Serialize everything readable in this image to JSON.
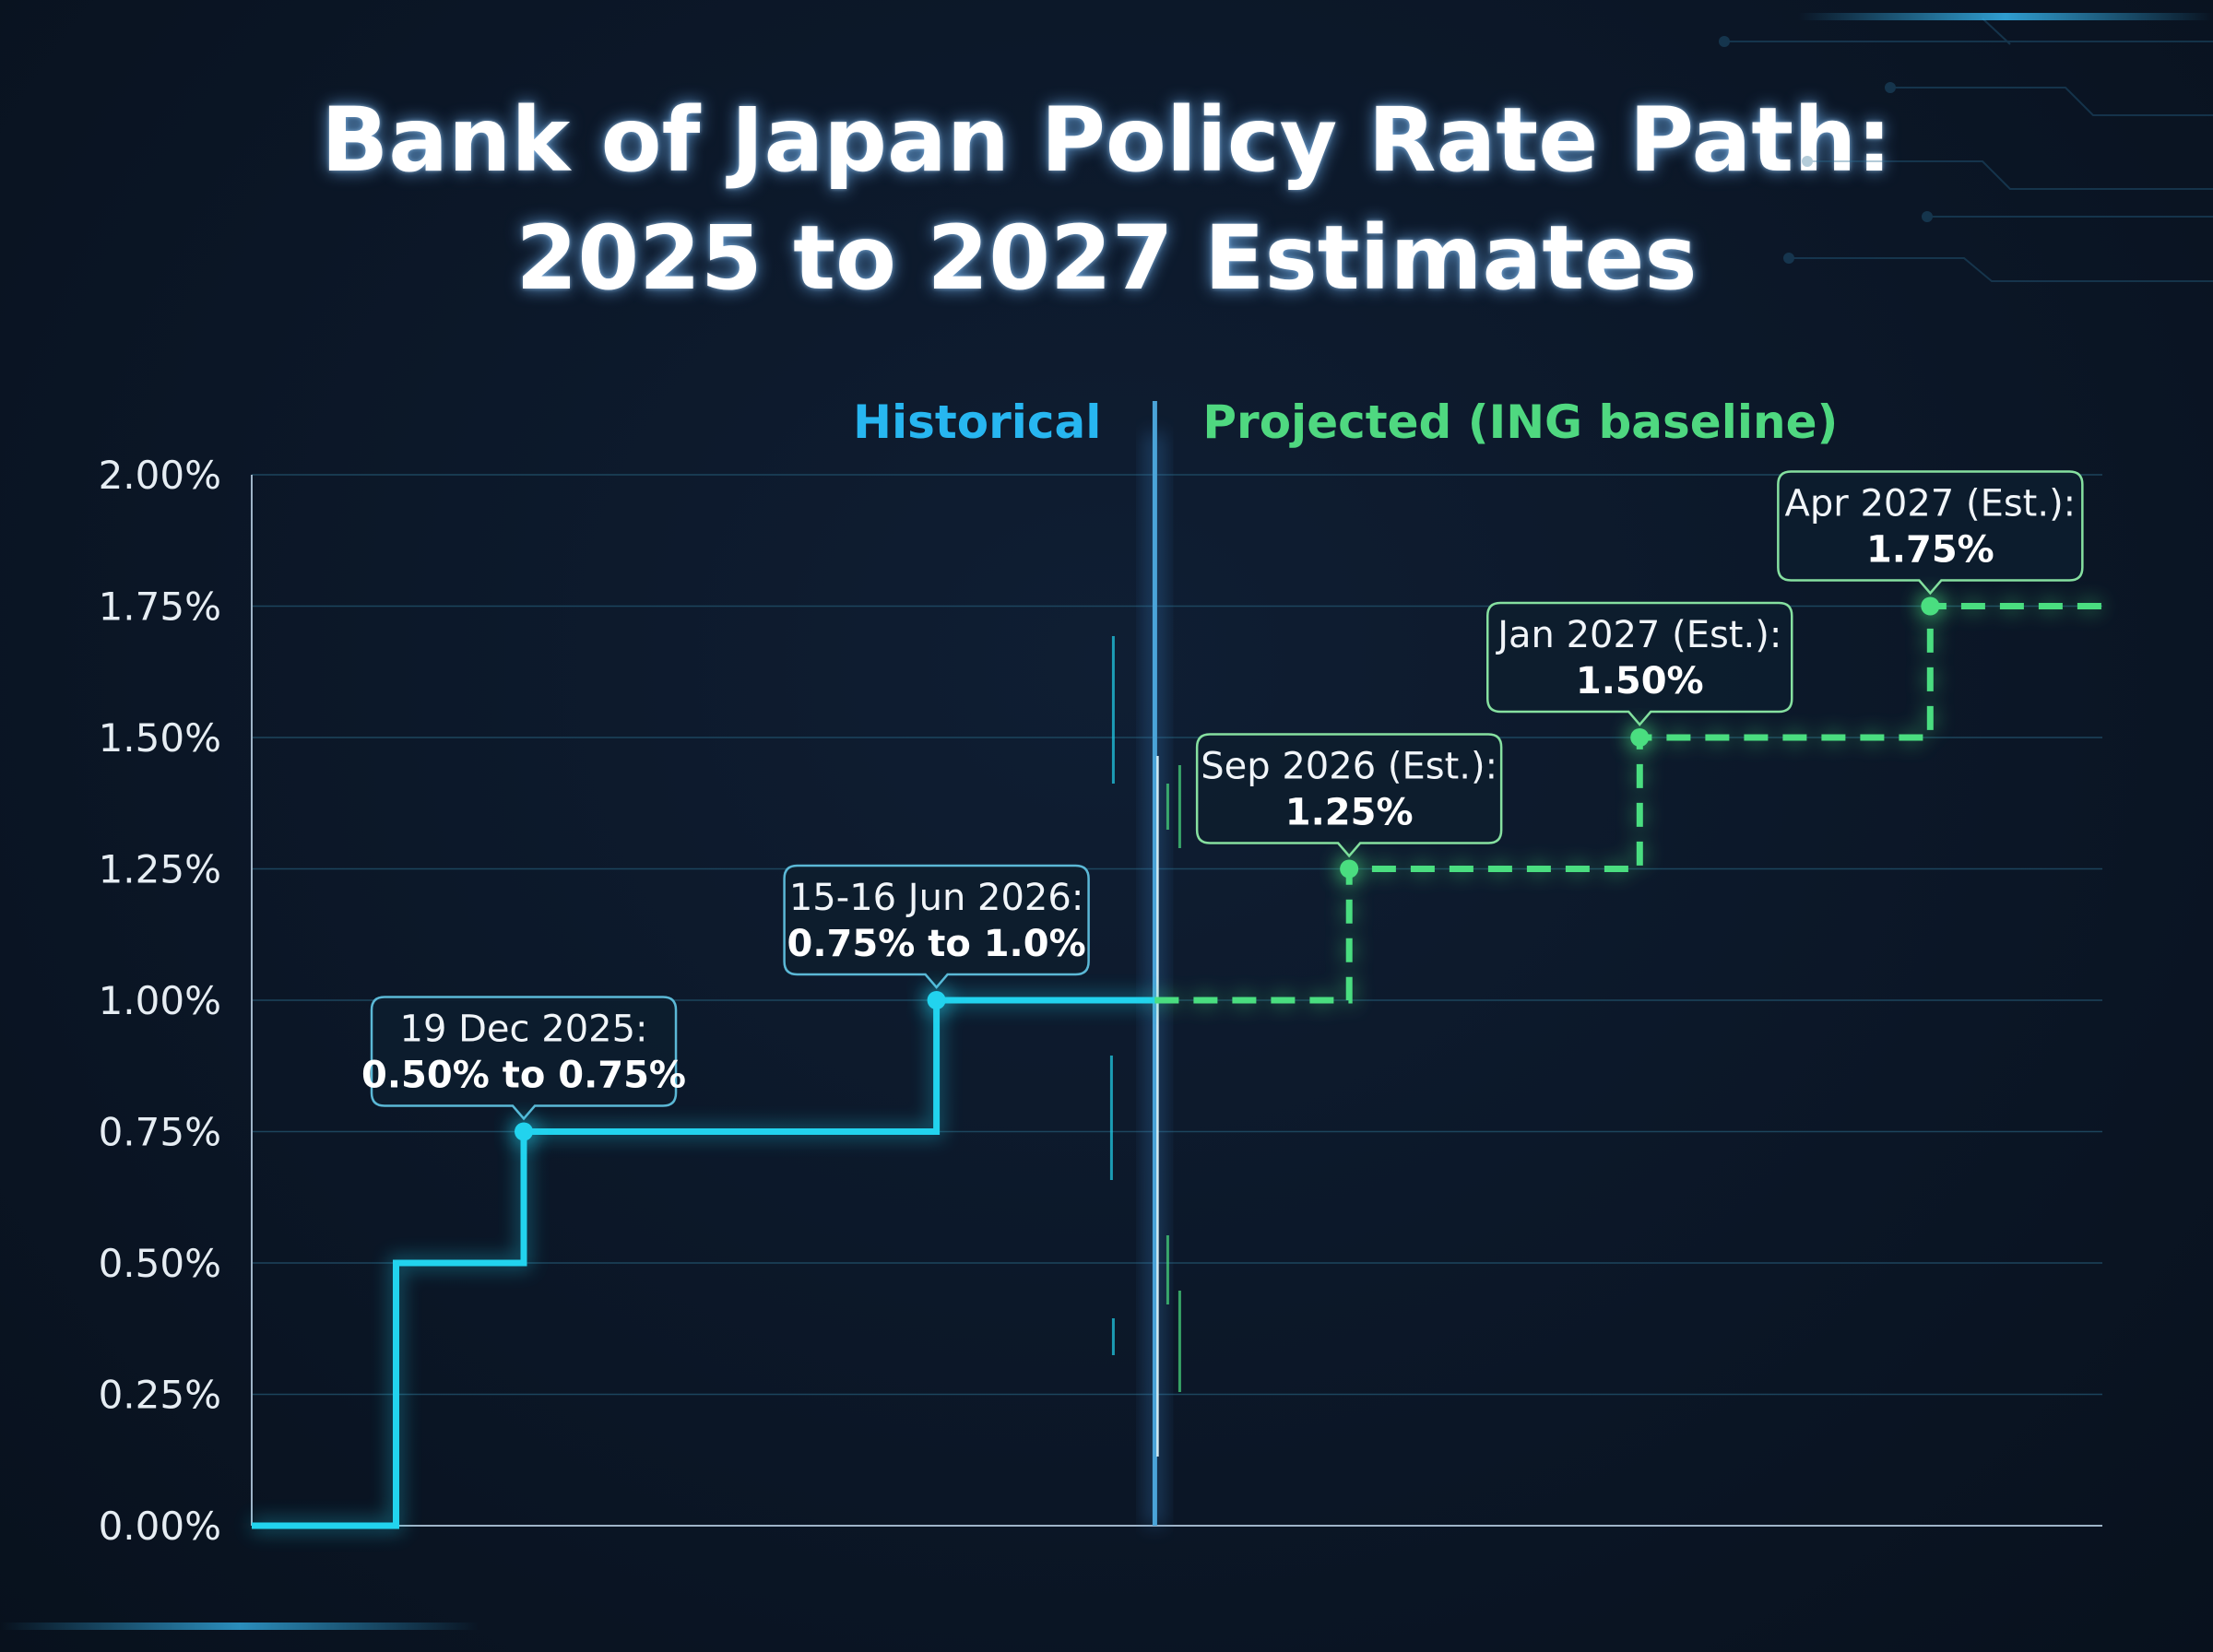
{
  "title": {
    "line1": "Bank of Japan Policy Rate Path:",
    "line2": "2025 to 2027 Estimates"
  },
  "colors": {
    "historical": "#22d3ee",
    "historical_label": "#27b6f0",
    "projected": "#4ade80",
    "projected_label": "#4fd880",
    "background": "#0b1626",
    "grid": "#1e4a63",
    "axis_text": "#e6edf3"
  },
  "chart_data": {
    "type": "line",
    "title": "Bank of Japan Policy Rate Path: 2025 to 2027 Estimates",
    "xlabel": "",
    "ylabel": "",
    "ylim": [
      0,
      2
    ],
    "y_ticks": [
      "0.00%",
      "0.25%",
      "0.50%",
      "0.75%",
      "1.00%",
      "1.25%",
      "1.50%",
      "1.75%",
      "2.00%"
    ],
    "grid": true,
    "step": true,
    "divider_at": 0.488,
    "x_range": [
      0,
      1.12
    ],
    "series": [
      {
        "name": "Historical",
        "style": "solid",
        "points": [
          {
            "x": 0.0,
            "y": 0.0
          },
          {
            "x": 0.078,
            "y": 0.0
          },
          {
            "x": 0.078,
            "y": 0.5
          },
          {
            "x": 0.147,
            "y": 0.5
          },
          {
            "x": 0.147,
            "y": 0.75,
            "marker": true
          },
          {
            "x": 0.37,
            "y": 0.75
          },
          {
            "x": 0.37,
            "y": 1.0,
            "marker": true
          },
          {
            "x": 0.488,
            "y": 1.0
          }
        ]
      },
      {
        "name": "Projected (ING baseline)",
        "style": "dashed",
        "points": [
          {
            "x": 0.488,
            "y": 1.0
          },
          {
            "x": 0.593,
            "y": 1.0
          },
          {
            "x": 0.593,
            "y": 1.25,
            "marker": true
          },
          {
            "x": 0.75,
            "y": 1.25
          },
          {
            "x": 0.75,
            "y": 1.5,
            "marker": true
          },
          {
            "x": 0.907,
            "y": 1.5
          },
          {
            "x": 0.907,
            "y": 1.75,
            "marker": true
          },
          {
            "x": 1.0,
            "y": 1.75
          }
        ]
      }
    ],
    "annotations": [
      {
        "x": 0.147,
        "y": 0.75,
        "line1": "19 Dec 2025:",
        "line2": "0.50% to 0.75%",
        "series": 0
      },
      {
        "x": 0.37,
        "y": 1.0,
        "line1": "15-16 Jun 2026:",
        "line2": "0.75% to 1.0%",
        "series": 0
      },
      {
        "x": 0.593,
        "y": 1.25,
        "line1": "Sep 2026 (Est.):",
        "line2": "1.25%",
        "series": 1
      },
      {
        "x": 0.75,
        "y": 1.5,
        "line1": "Jan 2027 (Est.):",
        "line2": "1.50%",
        "series": 1
      },
      {
        "x": 0.907,
        "y": 1.75,
        "line1": "Apr 2027 (Est.):",
        "line2": "1.75%",
        "series": 1
      }
    ],
    "region_labels": {
      "historical": "Historical",
      "projected": "Projected (ING baseline)"
    }
  }
}
